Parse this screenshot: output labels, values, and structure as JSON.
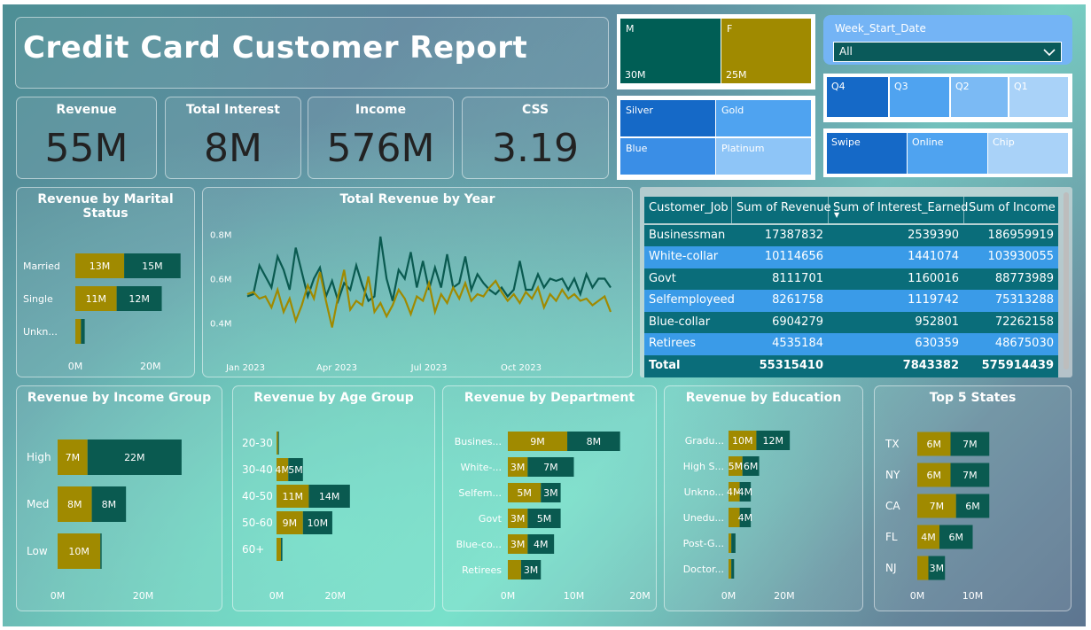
{
  "title": "Credit Card Customer Report",
  "kpis": [
    {
      "label": "Revenue",
      "value": "55M"
    },
    {
      "label": "Total Interest",
      "value": "8M"
    },
    {
      "label": "Income",
      "value": "576M"
    },
    {
      "label": "CSS",
      "value": "3.19"
    }
  ],
  "gender_tiles": [
    {
      "label": "M",
      "value": "30M"
    },
    {
      "label": "F",
      "value": "25M"
    }
  ],
  "card_tiles": [
    "Silver",
    "Gold",
    "Blue",
    "Platinum"
  ],
  "week_slicer": {
    "label": "Week_Start_Date",
    "value": "All"
  },
  "quarters": [
    "Q4",
    "Q3",
    "Q2",
    "Q1"
  ],
  "channels": [
    "Swipe",
    "Online",
    "Chip"
  ],
  "colors": {
    "gold": "#a08a00",
    "teal": "#00695c",
    "dark_teal": "#0a5a50",
    "blue": "#1569c7",
    "light_blue": "#8ec5f7"
  },
  "table": {
    "headers": [
      "Customer_Job",
      "Sum of Revenue",
      "Sum of Interest_Earned",
      "Sum of Income"
    ],
    "rows": [
      [
        "Businessman",
        "17387832",
        "2539390",
        "186959919"
      ],
      [
        "White-collar",
        "10114656",
        "1441074",
        "103930055"
      ],
      [
        "Govt",
        "8111701",
        "1160016",
        "88773989"
      ],
      [
        "Selfemployeed",
        "8261758",
        "1119742",
        "75313288"
      ],
      [
        "Blue-collar",
        "6904279",
        "952801",
        "72262158"
      ],
      [
        "Retirees",
        "4535184",
        "630359",
        "48675030"
      ]
    ],
    "total": [
      "Total",
      "55315410",
      "7843382",
      "575914439"
    ]
  },
  "chart_data": [
    {
      "type": "bar",
      "title": "Revenue by Marital Status",
      "categories": [
        "Married",
        "Single",
        "Unkn..."
      ],
      "series": [
        {
          "values": [
            13,
            11,
            1.5
          ],
          "labels": [
            "13M",
            "11M",
            ""
          ]
        },
        {
          "values": [
            15,
            12,
            1
          ],
          "labels": [
            "15M",
            "12M",
            ""
          ]
        }
      ],
      "xticks": [
        "0M",
        "20M"
      ],
      "xmax": 25
    },
    {
      "type": "line",
      "title": "Total Revenue by Year",
      "xticks": [
        "Jan 2023",
        "Apr 2023",
        "Jul 2023",
        "Oct 2023"
      ],
      "yticks": [
        "0.4M",
        "0.6M",
        "0.8M"
      ],
      "ylim": [
        0.35,
        0.85
      ],
      "series": [
        {
          "values": [
            0.52,
            0.53,
            0.66,
            0.61,
            0.56,
            0.7,
            0.64,
            0.55,
            0.74,
            0.63,
            0.52,
            0.6,
            0.65,
            0.52,
            0.59,
            0.5,
            0.58,
            0.55,
            0.66,
            0.57,
            0.5,
            0.52,
            0.79,
            0.6,
            0.5,
            0.64,
            0.6,
            0.72,
            0.56,
            0.68,
            0.55,
            0.65,
            0.56,
            0.71,
            0.56,
            0.58,
            0.7,
            0.55,
            0.62,
            0.58,
            0.55,
            0.53,
            0.56,
            0.52,
            0.55,
            0.68,
            0.55,
            0.55,
            0.62,
            0.56,
            0.6,
            0.59,
            0.6,
            0.55,
            0.6,
            0.53,
            0.62,
            0.56,
            0.6,
            0.6,
            0.56
          ]
        },
        {
          "values": [
            0.53,
            0.54,
            0.51,
            0.52,
            0.47,
            0.55,
            0.45,
            0.51,
            0.41,
            0.48,
            0.57,
            0.51,
            0.63,
            0.5,
            0.38,
            0.52,
            0.64,
            0.46,
            0.5,
            0.48,
            0.61,
            0.45,
            0.49,
            0.43,
            0.48,
            0.55,
            0.51,
            0.44,
            0.52,
            0.5,
            0.58,
            0.45,
            0.53,
            0.49,
            0.56,
            0.51,
            0.58,
            0.5,
            0.53,
            0.52,
            0.56,
            0.59,
            0.54,
            0.5,
            0.53,
            0.49,
            0.54,
            0.51,
            0.56,
            0.47,
            0.53,
            0.5,
            0.55,
            0.51,
            0.53,
            0.5,
            0.51,
            0.48,
            0.5,
            0.52,
            0.45
          ]
        }
      ]
    },
    {
      "type": "bar",
      "title": "Revenue by Income Group",
      "categories": [
        "High",
        "Med",
        "Low"
      ],
      "series": [
        {
          "values": [
            7,
            8,
            10
          ],
          "labels": [
            "7M",
            "8M",
            "10M"
          ]
        },
        {
          "values": [
            22,
            8,
            0.3
          ],
          "labels": [
            "22M",
            "8M",
            ""
          ]
        }
      ],
      "xticks": [
        "0M",
        "20M"
      ],
      "xmax": 34
    },
    {
      "type": "bar",
      "title": "Revenue by Age Group",
      "categories": [
        "20-30",
        "30-40",
        "40-50",
        "50-60",
        "60+"
      ],
      "series": [
        {
          "values": [
            0.5,
            4,
            11,
            9,
            1.5
          ],
          "labels": [
            "",
            "4M",
            "11M",
            "9M",
            ""
          ]
        },
        {
          "values": [
            0.3,
            5,
            14,
            10,
            0.5
          ],
          "labels": [
            "",
            "5M",
            "14M",
            "10M",
            ""
          ]
        }
      ],
      "xticks": [
        "0M",
        "20M"
      ],
      "xmax": 32
    },
    {
      "type": "bar",
      "title": "Revenue by Department",
      "categories": [
        "Busines...",
        "White-...",
        "Selfem...",
        "Govt",
        "Blue-co...",
        "Retirees"
      ],
      "series": [
        {
          "values": [
            9,
            3,
            5,
            3,
            3,
            2
          ],
          "labels": [
            "9M",
            "3M",
            "5M",
            "3M",
            "3M",
            ""
          ]
        },
        {
          "values": [
            8,
            7,
            3,
            5,
            4,
            3
          ],
          "labels": [
            "8M",
            "7M",
            "3M",
            "5M",
            "4M",
            "3M"
          ]
        }
      ],
      "xticks": [
        "0M",
        "10M",
        "20M"
      ],
      "xmax": 20
    },
    {
      "type": "bar",
      "title": "Revenue by Education",
      "categories": [
        "Gradu...",
        "High S...",
        "Unkno...",
        "Unedu...",
        "Post-G...",
        "Doctor..."
      ],
      "series": [
        {
          "values": [
            10,
            5,
            4,
            4,
            1,
            1
          ],
          "labels": [
            "10M",
            "5M",
            "4M",
            "",
            "",
            " "
          ]
        },
        {
          "values": [
            12,
            6,
            4,
            4,
            1.5,
            1
          ],
          "labels": [
            "12M",
            "6M",
            "4M",
            "4M",
            "",
            ""
          ]
        }
      ],
      "xticks": [
        "0M",
        "20M"
      ],
      "xmax": 28
    },
    {
      "type": "bar",
      "title": "Top 5 States",
      "categories": [
        "TX",
        "NY",
        "CA",
        "FL",
        "NJ"
      ],
      "series": [
        {
          "values": [
            6,
            6,
            7,
            4,
            2
          ],
          "labels": [
            "6M",
            "6M",
            "7M",
            "4M",
            ""
          ]
        },
        {
          "values": [
            7,
            7,
            6,
            6,
            3
          ],
          "labels": [
            "7M",
            "7M",
            "6M",
            "6M",
            "3M"
          ]
        }
      ],
      "xticks": [
        "0M",
        "10M"
      ],
      "xmax": 16
    }
  ]
}
